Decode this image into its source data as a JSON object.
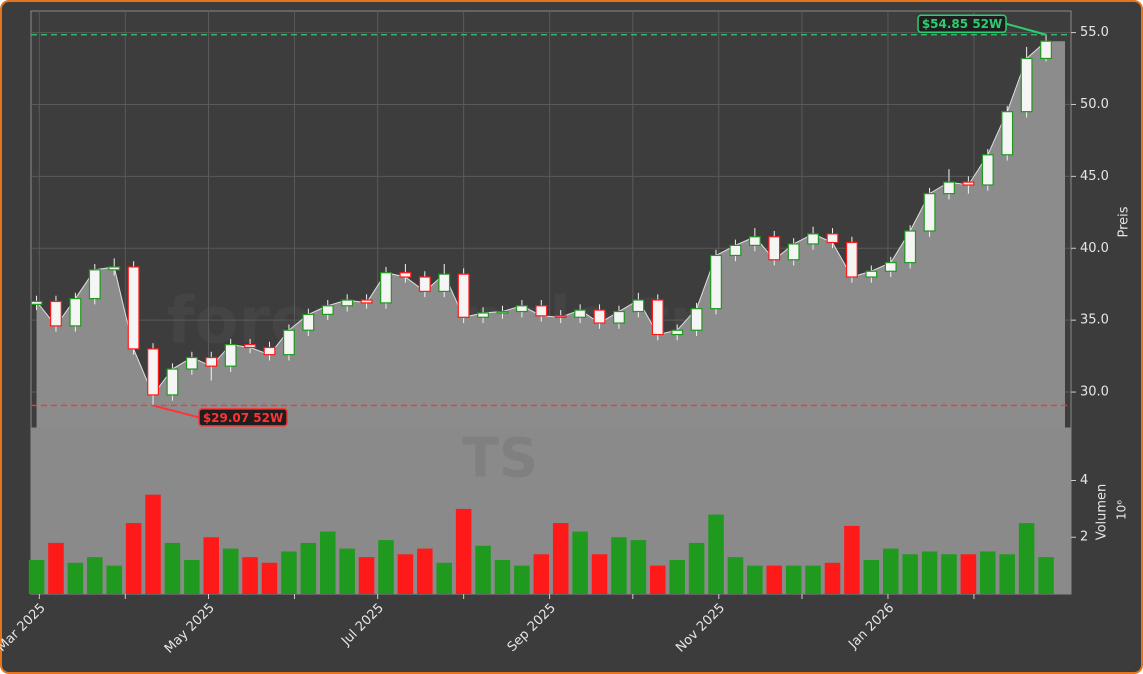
{
  "chart_data": {
    "type": "candlestick",
    "watermark": "forexsignale.trade",
    "symbol": "TS",
    "x": [
      "2025-02-28",
      "2025-03-07",
      "2025-03-14",
      "2025-03-21",
      "2025-03-28",
      "2025-04-04",
      "2025-04-11",
      "2025-04-18",
      "2025-04-25",
      "2025-05-02",
      "2025-05-09",
      "2025-05-16",
      "2025-05-23",
      "2025-05-30",
      "2025-06-06",
      "2025-06-13",
      "2025-06-20",
      "2025-06-27",
      "2025-07-04",
      "2025-07-11",
      "2025-07-18",
      "2025-07-25",
      "2025-08-01",
      "2025-08-08",
      "2025-08-15",
      "2025-08-22",
      "2025-08-29",
      "2025-09-05",
      "2025-09-12",
      "2025-09-19",
      "2025-09-26",
      "2025-10-03",
      "2025-10-10",
      "2025-10-17",
      "2025-10-24",
      "2025-10-31",
      "2025-11-07",
      "2025-11-14",
      "2025-11-21",
      "2025-11-28",
      "2025-12-05",
      "2025-12-12",
      "2025-12-19",
      "2025-12-26",
      "2026-01-02",
      "2026-01-09",
      "2026-01-16",
      "2026-01-23",
      "2026-01-30",
      "2026-02-06",
      "2026-02-13",
      "2026-02-20",
      "2026-02-27"
    ],
    "open": [
      36.1,
      36.3,
      34.6,
      36.5,
      38.5,
      38.7,
      33.0,
      29.8,
      31.6,
      32.4,
      31.8,
      33.3,
      33.1,
      32.6,
      34.3,
      35.4,
      36.0,
      36.4,
      36.2,
      38.3,
      38.0,
      37.0,
      38.2,
      35.2,
      35.5,
      35.6,
      36.0,
      35.3,
      35.2,
      35.7,
      34.8,
      35.6,
      36.4,
      34.0,
      34.3,
      35.8,
      39.5,
      40.2,
      40.8,
      39.2,
      40.3,
      41.0,
      40.4,
      38.0,
      38.4,
      39.0,
      41.2,
      43.8,
      44.6,
      44.4,
      46.5,
      49.5,
      53.2
    ],
    "high": [
      36.7,
      36.7,
      36.9,
      38.9,
      39.3,
      39.1,
      33.4,
      32.0,
      32.8,
      32.8,
      33.7,
      33.7,
      33.5,
      34.7,
      35.8,
      36.4,
      36.8,
      36.8,
      38.7,
      38.9,
      38.4,
      38.9,
      38.6,
      35.9,
      36.0,
      36.4,
      36.4,
      35.7,
      36.1,
      36.1,
      36.0,
      36.9,
      36.8,
      34.7,
      36.2,
      39.9,
      40.6,
      41.4,
      41.2,
      40.7,
      41.5,
      41.4,
      40.8,
      38.8,
      39.4,
      41.6,
      44.2,
      45.5,
      45.0,
      46.9,
      49.9,
      54.0,
      54.85
    ],
    "low": [
      35.7,
      34.2,
      34.2,
      36.1,
      38.1,
      32.6,
      29.07,
      29.4,
      31.2,
      30.8,
      31.4,
      32.7,
      32.2,
      32.2,
      33.9,
      35.0,
      35.6,
      35.8,
      35.8,
      37.6,
      36.6,
      36.6,
      34.8,
      34.8,
      35.1,
      35.2,
      34.9,
      34.8,
      34.8,
      34.4,
      34.4,
      35.2,
      33.6,
      33.6,
      33.9,
      35.4,
      39.1,
      39.8,
      38.8,
      38.8,
      39.9,
      40.0,
      37.6,
      37.6,
      38.0,
      38.6,
      40.8,
      43.4,
      43.8,
      44.0,
      46.1,
      49.1,
      53.0
    ],
    "close": [
      36.3,
      34.6,
      36.5,
      38.5,
      38.7,
      33.0,
      29.8,
      31.6,
      32.4,
      31.8,
      33.3,
      33.1,
      32.6,
      34.3,
      35.4,
      36.0,
      36.4,
      36.2,
      38.3,
      38.0,
      37.0,
      38.2,
      35.2,
      35.5,
      35.6,
      36.0,
      35.3,
      35.2,
      35.7,
      34.8,
      35.6,
      36.4,
      34.0,
      34.3,
      35.8,
      39.5,
      40.2,
      40.8,
      39.2,
      40.3,
      41.0,
      40.4,
      38.0,
      38.4,
      39.0,
      41.2,
      43.8,
      44.6,
      44.4,
      46.5,
      49.5,
      53.2,
      54.4
    ],
    "volume": [
      1.2,
      1.8,
      1.1,
      1.3,
      1.0,
      2.5,
      3.5,
      1.8,
      1.2,
      2.0,
      1.6,
      1.3,
      1.1,
      1.5,
      1.8,
      2.2,
      1.6,
      1.3,
      1.9,
      1.4,
      1.6,
      1.1,
      3.0,
      1.7,
      1.2,
      1.0,
      1.4,
      2.5,
      2.2,
      1.4,
      2.0,
      1.9,
      1.0,
      1.2,
      1.8,
      2.8,
      1.3,
      1.0,
      1.0,
      1.0,
      1.0,
      1.1,
      2.4,
      1.2,
      1.6,
      1.4,
      1.5,
      1.4,
      1.4,
      1.5,
      1.4,
      2.5,
      1.3
    ],
    "up_color": "#1f9a1f",
    "down_color": "#ff1a1a",
    "area_color": "#8c8c8c",
    "grid": true,
    "xlim": [
      "2025-02-26",
      "2026-03-08"
    ],
    "xticks": [
      {
        "value": "2025-03-01",
        "label": "Mar 2025"
      },
      {
        "value": "2025-05-01",
        "label": "May 2025"
      },
      {
        "value": "2025-07-01",
        "label": "Jul 2025"
      },
      {
        "value": "2025-09-01",
        "label": "Sep 2025"
      },
      {
        "value": "2025-11-01",
        "label": "Nov 2025"
      },
      {
        "value": "2026-01-01",
        "label": "Jan 2026"
      }
    ],
    "xticks_minor": [
      "2025-04-01",
      "2025-06-01",
      "2025-08-01",
      "2025-10-01",
      "2025-12-01",
      "2026-02-01"
    ],
    "ylim": [
      27.5,
      56.5
    ],
    "yticks": [
      {
        "value": 30,
        "label": "30.0"
      },
      {
        "value": 35,
        "label": "35.0"
      },
      {
        "value": 40,
        "label": "40.0"
      },
      {
        "value": 45,
        "label": "45.0"
      },
      {
        "value": 50,
        "label": "50.0"
      },
      {
        "value": 55,
        "label": "55.0"
      }
    ],
    "ylabel": "Preis",
    "y2lim": [
      0,
      5.85
    ],
    "y2ticks": [
      2,
      4
    ],
    "y2label": "Volumen",
    "y2offset": "10⁶",
    "annotations": [
      {
        "text": "$54.85 52W",
        "x": "2026-02-27",
        "value": 54.85,
        "color": "#2ecc71"
      },
      {
        "text": "$29.07 52W",
        "x": "2025-04-11",
        "value": 29.07,
        "color": "#ff3333"
      }
    ]
  }
}
